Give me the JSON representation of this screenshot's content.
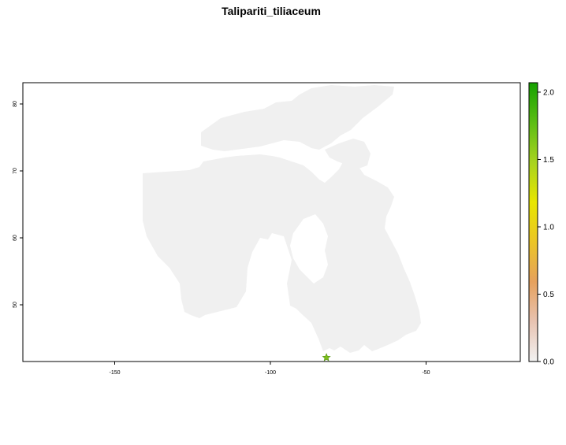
{
  "title": "Talipariti_tiliaceum",
  "map": {
    "x_ticks": [
      {
        "value": -150,
        "label": "-150"
      },
      {
        "value": -100,
        "label": "-100"
      },
      {
        "value": -50,
        "label": "-50"
      }
    ],
    "y_ticks": [
      {
        "value": 50,
        "label": "50"
      },
      {
        "value": 60,
        "label": "60"
      },
      {
        "value": 70,
        "label": "70"
      },
      {
        "value": 80,
        "label": "80"
      }
    ],
    "land_color": "#f0f0f0",
    "occurrence": {
      "lon": -82,
      "lat": 42,
      "marker": "star-icon",
      "color": "#7ec019"
    }
  },
  "legend": {
    "ticks": [
      {
        "value": 0.0,
        "label": "0.0"
      },
      {
        "value": 0.5,
        "label": "0.5"
      },
      {
        "value": 1.0,
        "label": "1.0"
      },
      {
        "value": 1.5,
        "label": "1.5"
      },
      {
        "value": 2.0,
        "label": "2.0"
      }
    ],
    "range": [
      0,
      2.07
    ],
    "colors": [
      "#f2f2f2",
      "#e8c3b1",
      "#e6a15d",
      "#ebc526",
      "#e8e600",
      "#a8d31f",
      "#5cbd14",
      "#15a100"
    ]
  }
}
